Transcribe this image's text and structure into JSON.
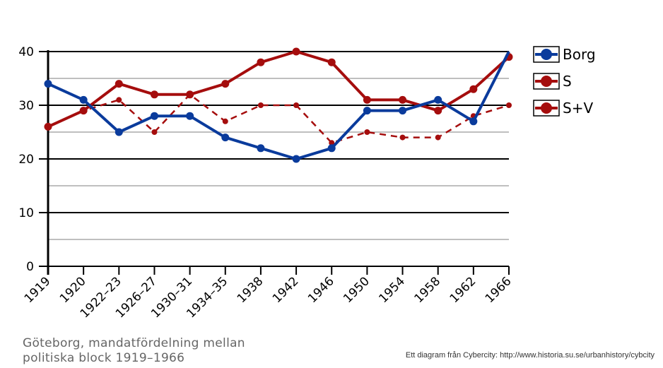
{
  "chart_data": {
    "type": "line",
    "title": "Göteborg, mandatfördelning  mellan politiska block 1919–1966",
    "xlabel": "",
    "ylabel": "",
    "ylim": [
      0,
      40
    ],
    "yticks": [
      "0",
      "10",
      "20",
      "30",
      "40"
    ],
    "grid": true,
    "legend_position": "right",
    "categories": [
      "1919",
      "1920",
      "1922–23",
      "1926–27",
      "1930–31",
      "1934–35",
      "1938",
      "1942",
      "1946",
      "1950",
      "1954",
      "1958",
      "1962",
      "1966"
    ],
    "series": [
      {
        "name": "Borg",
        "color": "#0a3b9c",
        "dashed": false,
        "values": [
          34,
          31,
          25,
          28,
          28,
          24,
          22,
          20,
          22,
          29,
          29,
          31,
          27,
          40
        ]
      },
      {
        "name": "S",
        "color": "#a50d0d",
        "dashed": true,
        "values": [
          26,
          29,
          31,
          25,
          32,
          27,
          30,
          30,
          23,
          25,
          24,
          24,
          28,
          30
        ]
      },
      {
        "name": "S+V",
        "color": "#a50d0d",
        "dashed": false,
        "values": [
          26,
          29,
          34,
          32,
          32,
          34,
          38,
          40,
          38,
          31,
          31,
          29,
          33,
          39
        ]
      }
    ]
  },
  "caption": {
    "line1": "Göteborg, mandatfördelning  mellan",
    "line2": "politiska block 1919–1966"
  },
  "credit": "Ett diagram från Cybercity: http://www.historia.su.se/urbanhistory/cybcity"
}
